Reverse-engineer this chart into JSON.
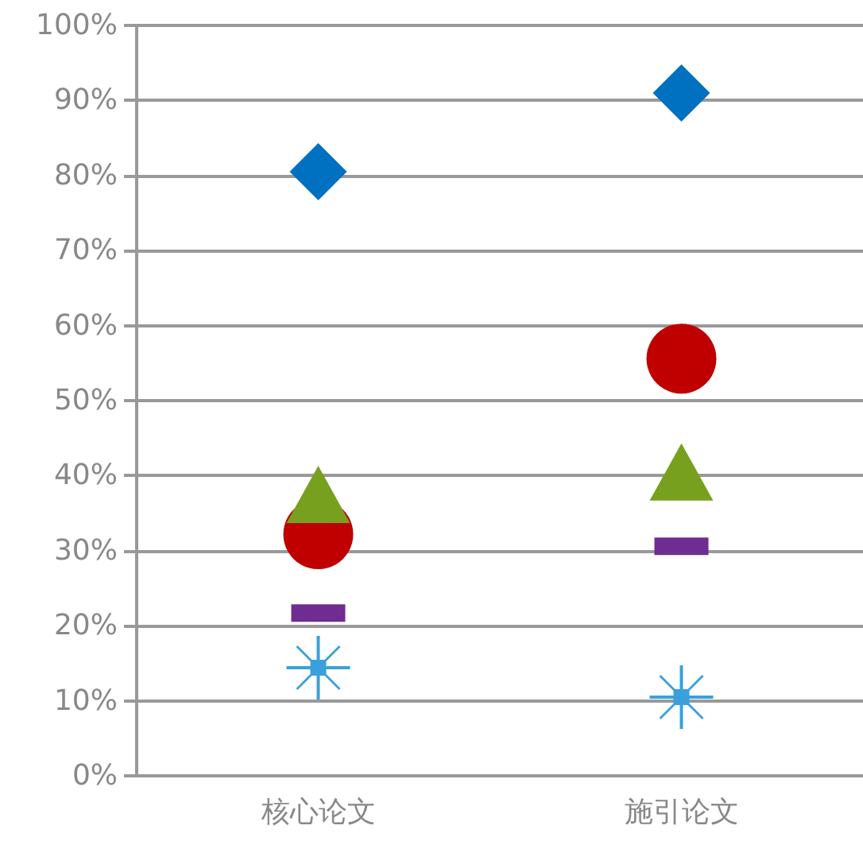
{
  "chart_data": {
    "type": "scatter",
    "categories": [
      "核心论文",
      "施引论文"
    ],
    "series": [
      {
        "color": "#0070c0",
        "marker": "diamond",
        "values": [
          80.5,
          91.0
        ]
      },
      {
        "color": "#c00000",
        "marker": "circle",
        "values": [
          32.2,
          55.6
        ]
      },
      {
        "color": "#77a01f",
        "marker": "triangle",
        "values": [
          37.5,
          40.5
        ]
      },
      {
        "color": "#6f2c91",
        "marker": "square",
        "values": [
          21.7,
          30.6
        ]
      },
      {
        "color": "#3aa0dc",
        "marker": "star",
        "values": [
          14.4,
          10.5
        ]
      }
    ],
    "ylim": [
      0,
      100
    ],
    "yticks": [
      {
        "value": 0,
        "label": "0%"
      },
      {
        "value": 10,
        "label": "10%"
      },
      {
        "value": 20,
        "label": "20%"
      },
      {
        "value": 30,
        "label": "30%"
      },
      {
        "value": 40,
        "label": "40%"
      },
      {
        "value": 50,
        "label": "50%"
      },
      {
        "value": 60,
        "label": "60%"
      },
      {
        "value": 70,
        "label": "70%"
      },
      {
        "value": 80,
        "label": "80%"
      },
      {
        "value": 90,
        "label": "90%"
      },
      {
        "value": 100,
        "label": "100%"
      }
    ],
    "grid": "y"
  }
}
